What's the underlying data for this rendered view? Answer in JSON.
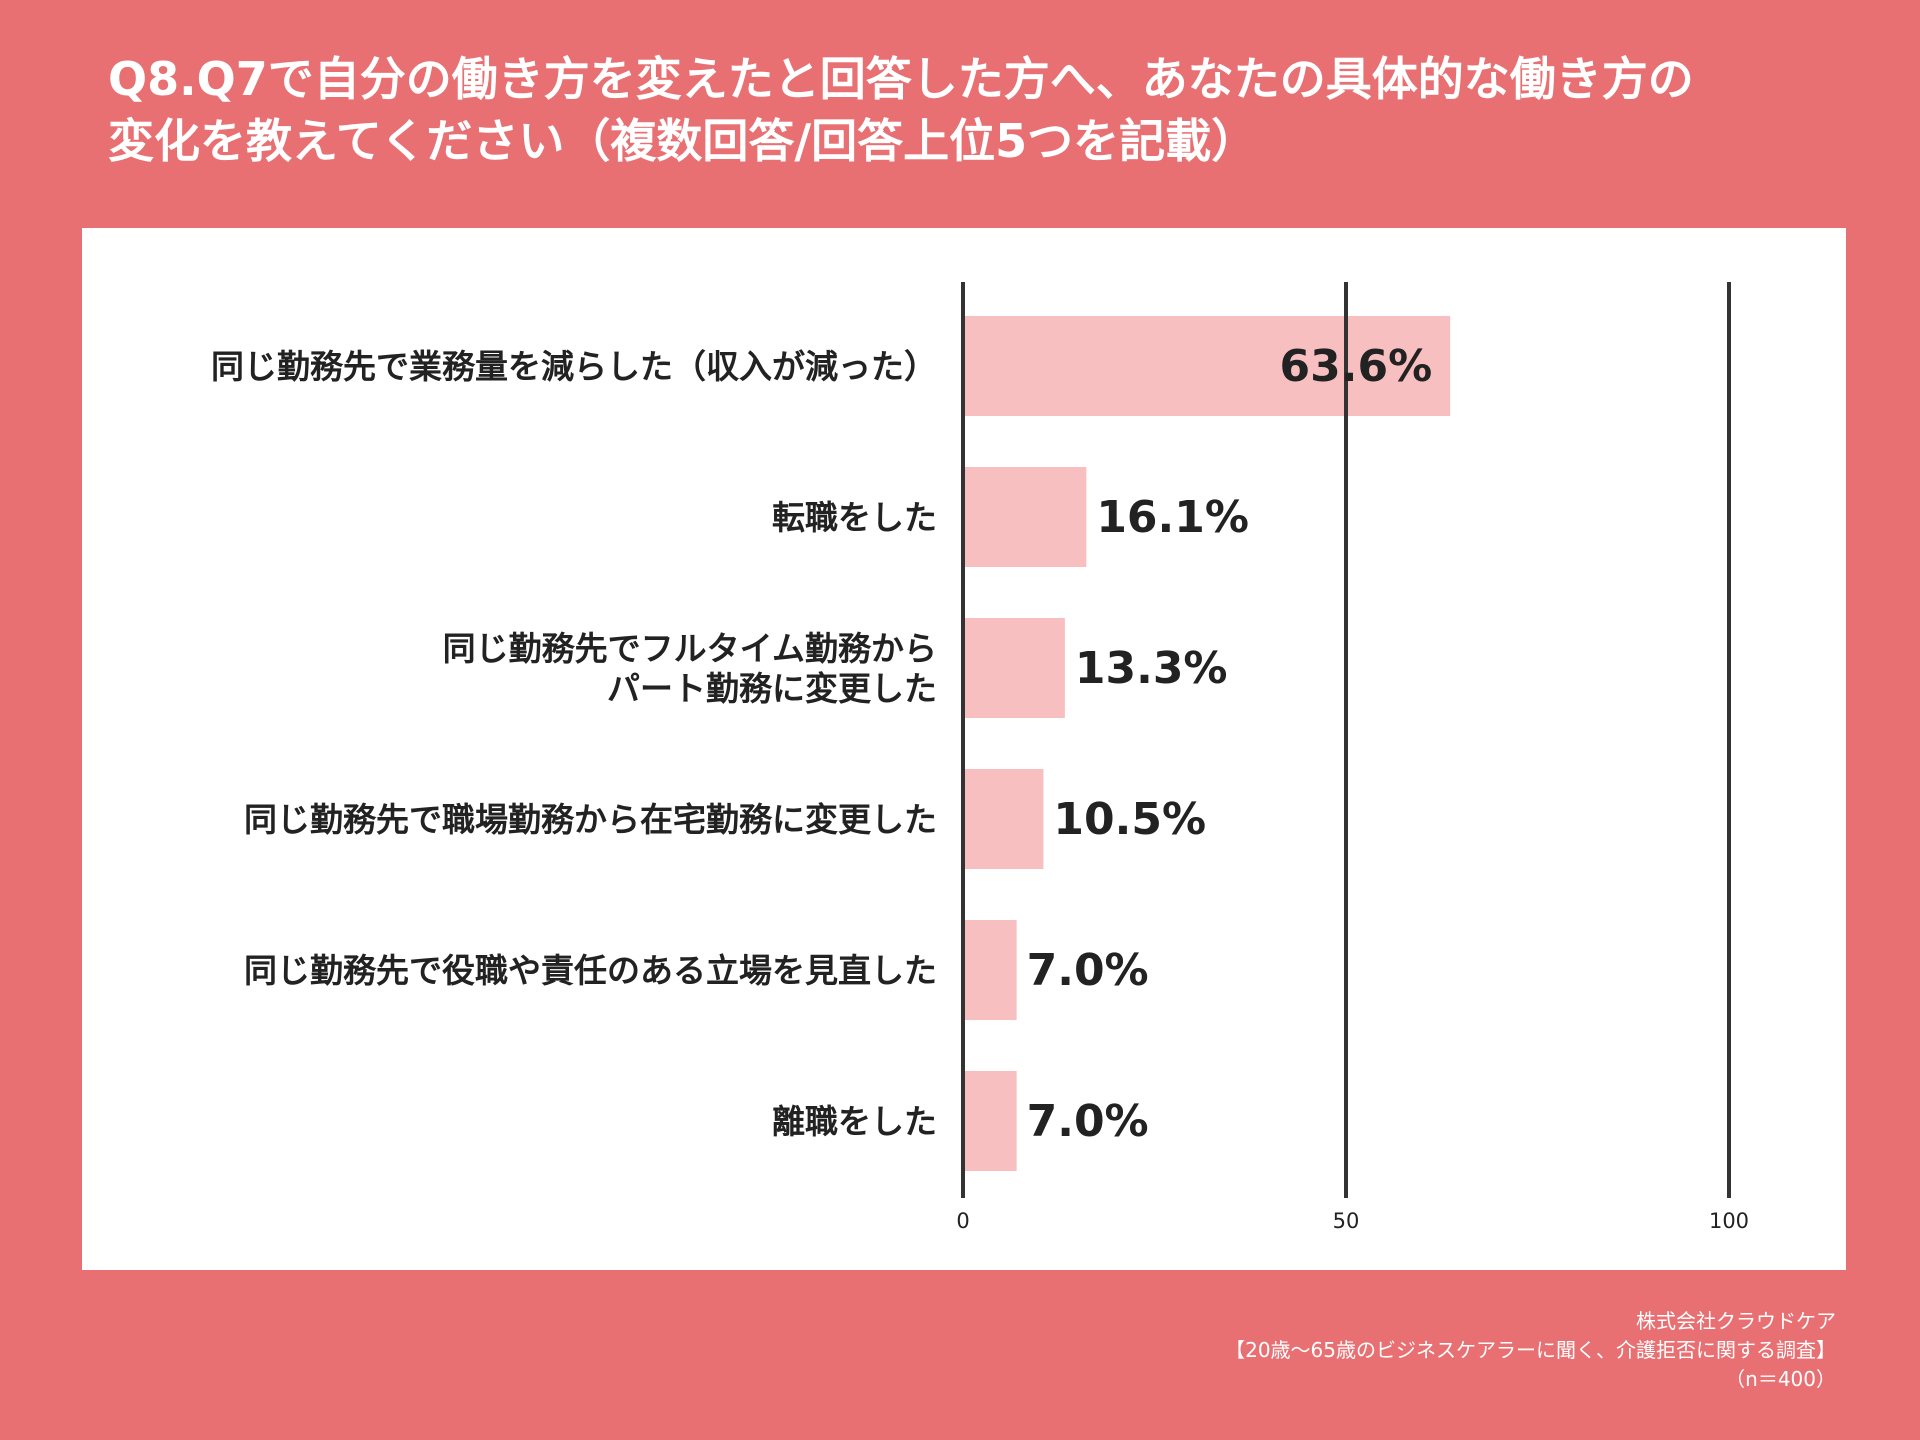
{
  "title": {
    "line1": "Q8.Q7で自分の働き方を変えたと回答した方へ、あなたの具体的な働き方の",
    "line2": "変化を教えてください（複数回答/回答上位5つを記載）"
  },
  "footer": {
    "company": "株式会社クラウドケア",
    "survey": "【20歳〜65歳のビジネスケアラーに聞く、介護拒否に関する調査】",
    "sample": "（n＝400）"
  },
  "colors": {
    "background": "#e87073",
    "bar": "#f7bfc0",
    "axis": "#333333",
    "text": "#222222"
  },
  "chart_data": {
    "type": "bar",
    "orientation": "horizontal",
    "categories": [
      [
        "同じ勤務先で業務量を減らした（収入が減った）"
      ],
      [
        "転職をした"
      ],
      [
        "同じ勤務先でフルタイム勤務から",
        "パート勤務に変更した"
      ],
      [
        "同じ勤務先で職場勤務から在宅勤務に変更した"
      ],
      [
        "同じ勤務先で役職や責任のある立場を見直した"
      ],
      [
        "離職をした"
      ]
    ],
    "values": [
      63.6,
      16.1,
      13.3,
      10.5,
      7.0,
      7.0
    ],
    "value_labels": [
      "63.6%",
      "16.1%",
      "13.3%",
      "10.5%",
      "7.0%",
      "7.0%"
    ],
    "xlim": [
      0,
      100
    ],
    "xticks": [
      0,
      50,
      100
    ],
    "grid": true,
    "xlabel": "",
    "ylabel": ""
  }
}
